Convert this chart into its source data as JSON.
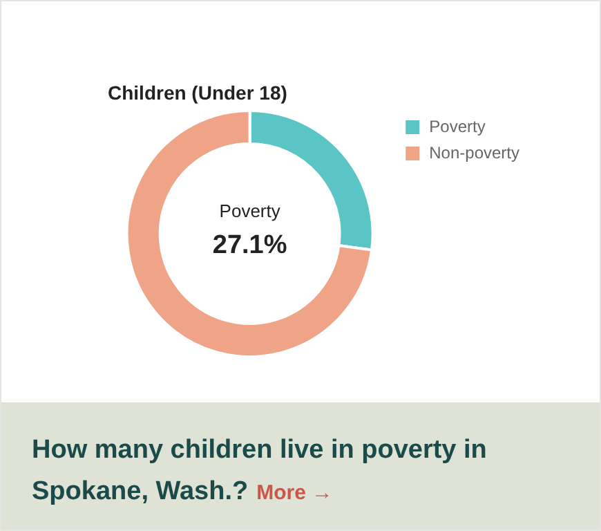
{
  "chart_data": {
    "type": "donut",
    "title": "Children (Under 18)",
    "categories": [
      "Poverty",
      "Non-poverty"
    ],
    "values": [
      27.1,
      72.9
    ],
    "colors": [
      "#5bc5c5",
      "#f0a487"
    ],
    "value_labels": [
      "27.1%",
      null
    ],
    "legend": "right",
    "annotations": [
      "How many children live in poverty in Spokane, Wash.?",
      "More →"
    ]
  }
}
